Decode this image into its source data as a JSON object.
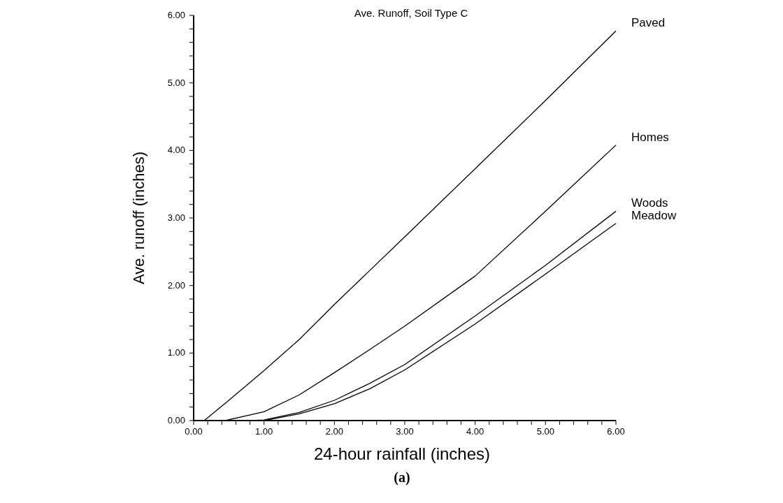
{
  "chart_data": {
    "type": "line",
    "title": "Ave. Runoff, Soil Type C",
    "xlabel": "24-hour rainfall  (inches)",
    "ylabel": "Ave.  runoff  (inches)",
    "annotations": [
      "(a)"
    ],
    "line_style": "solid",
    "marker": "none",
    "xlim": [
      0,
      6
    ],
    "ylim": [
      0,
      6
    ],
    "xticks": [
      {
        "value": 0,
        "label": "0.00"
      },
      {
        "value": 0.2,
        "label": null
      },
      {
        "value": 0.4,
        "label": null
      },
      {
        "value": 0.6,
        "label": null
      },
      {
        "value": 0.8,
        "label": null
      },
      {
        "value": 1,
        "label": "1.00"
      },
      {
        "value": 1.2,
        "label": null
      },
      {
        "value": 1.4,
        "label": null
      },
      {
        "value": 1.6,
        "label": null
      },
      {
        "value": 1.8,
        "label": null
      },
      {
        "value": 2,
        "label": "2.00"
      },
      {
        "value": 2.2,
        "label": null
      },
      {
        "value": 2.4,
        "label": null
      },
      {
        "value": 2.6,
        "label": null
      },
      {
        "value": 2.8,
        "label": null
      },
      {
        "value": 3,
        "label": "3.00"
      },
      {
        "value": 3.2,
        "label": null
      },
      {
        "value": 3.4,
        "label": null
      },
      {
        "value": 3.6,
        "label": null
      },
      {
        "value": 3.8,
        "label": null
      },
      {
        "value": 4,
        "label": "4.00"
      },
      {
        "value": 4.2,
        "label": null
      },
      {
        "value": 4.4,
        "label": null
      },
      {
        "value": 4.6,
        "label": null
      },
      {
        "value": 4.8,
        "label": null
      },
      {
        "value": 5,
        "label": "5.00"
      },
      {
        "value": 5.2,
        "label": null
      },
      {
        "value": 5.4,
        "label": null
      },
      {
        "value": 5.6,
        "label": null
      },
      {
        "value": 5.8,
        "label": null
      },
      {
        "value": 6,
        "label": "6.00"
      }
    ],
    "yticks": [
      {
        "value": 0,
        "label": "0.00"
      },
      {
        "value": 0.2,
        "label": null
      },
      {
        "value": 0.4,
        "label": null
      },
      {
        "value": 0.6,
        "label": null
      },
      {
        "value": 0.8,
        "label": null
      },
      {
        "value": 1,
        "label": "1.00"
      },
      {
        "value": 1.2,
        "label": null
      },
      {
        "value": 1.4,
        "label": null
      },
      {
        "value": 1.6,
        "label": null
      },
      {
        "value": 1.8,
        "label": null
      },
      {
        "value": 2,
        "label": "2.00"
      },
      {
        "value": 2.2,
        "label": null
      },
      {
        "value": 2.4,
        "label": null
      },
      {
        "value": 2.6,
        "label": null
      },
      {
        "value": 2.8,
        "label": null
      },
      {
        "value": 3,
        "label": "3.00"
      },
      {
        "value": 3.2,
        "label": null
      },
      {
        "value": 3.4,
        "label": null
      },
      {
        "value": 3.6,
        "label": null
      },
      {
        "value": 3.8,
        "label": null
      },
      {
        "value": 4,
        "label": "4.00"
      },
      {
        "value": 4.2,
        "label": null
      },
      {
        "value": 4.4,
        "label": null
      },
      {
        "value": 4.6,
        "label": null
      },
      {
        "value": 4.8,
        "label": null
      },
      {
        "value": 5,
        "label": "5.00"
      },
      {
        "value": 5.2,
        "label": null
      },
      {
        "value": 5.4,
        "label": null
      },
      {
        "value": 5.6,
        "label": null
      },
      {
        "value": 5.8,
        "label": null
      },
      {
        "value": 6,
        "label": "6.00"
      }
    ],
    "series": [
      {
        "name": "Paved",
        "color": "#000000",
        "x": [
          0.15,
          0.5,
          1,
          1.5,
          2,
          2.5,
          3,
          4,
          5,
          6
        ],
        "values": [
          0,
          0.3,
          0.74,
          1.2,
          1.72,
          2.22,
          2.72,
          3.73,
          4.74,
          5.77
        ]
      },
      {
        "name": "Homes",
        "color": "#000000",
        "x": [
          0.45,
          1,
          1.5,
          2,
          2.5,
          3,
          4,
          5,
          6
        ],
        "values": [
          0,
          0.13,
          0.38,
          0.71,
          1.05,
          1.4,
          2.14,
          3.1,
          4.08
        ]
      },
      {
        "name": "Woods",
        "color": "#000000",
        "x": [
          0.8,
          1,
          1.5,
          2,
          2.5,
          3,
          4,
          5,
          6
        ],
        "values": [
          0,
          0.01,
          0.12,
          0.3,
          0.55,
          0.83,
          1.55,
          2.3,
          3.1
        ]
      },
      {
        "name": "Meadow",
        "color": "#000000",
        "x": [
          0.9,
          1,
          1.5,
          2,
          2.5,
          3,
          4,
          5,
          6
        ],
        "values": [
          0,
          0,
          0.1,
          0.25,
          0.47,
          0.75,
          1.43,
          2.17,
          2.92
        ]
      }
    ]
  }
}
